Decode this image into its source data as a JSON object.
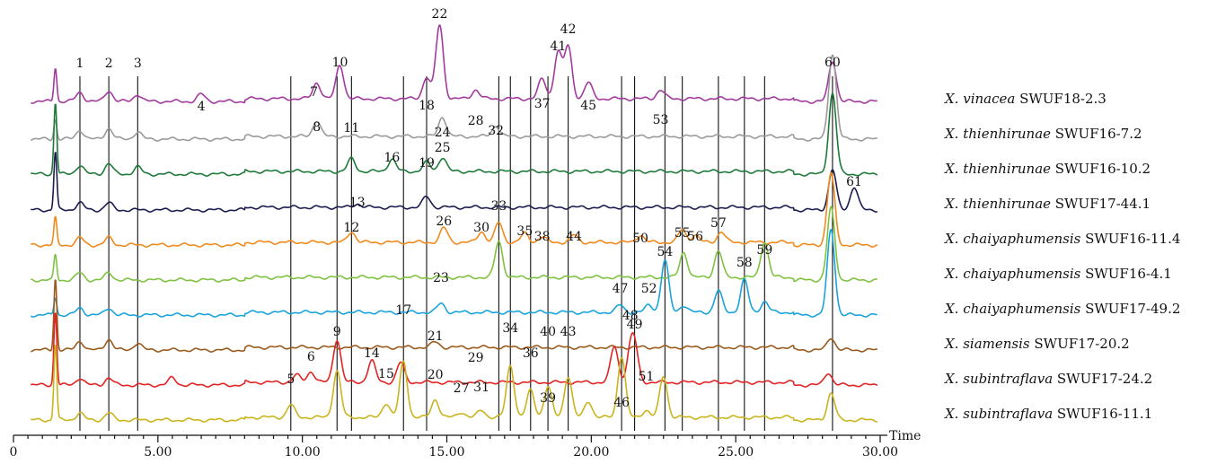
{
  "chart_data": {
    "type": "line",
    "title": "",
    "xlabel": "Time",
    "ylabel": "",
    "xlim": [
      0,
      30
    ],
    "x_ticks": [
      "0",
      "5.00",
      "10.00",
      "15.00",
      "20.00",
      "25.00",
      "30.00"
    ],
    "grid": false,
    "legend_placement": "right",
    "series": [
      {
        "name_species": "X. vinacea",
        "name_strain": "SWUF18-2.3",
        "color": "#a23a9e",
        "peaks": [
          [
            1.45,
            38
          ],
          [
            2.3,
            10
          ],
          [
            3.3,
            12
          ],
          [
            4.3,
            8
          ],
          [
            6.5,
            8
          ],
          [
            10.5,
            18
          ],
          [
            11.3,
            38
          ],
          [
            14.3,
            24
          ],
          [
            14.75,
            82
          ],
          [
            16.0,
            10
          ],
          [
            18.3,
            22
          ],
          [
            18.85,
            52
          ],
          [
            19.2,
            58
          ],
          [
            19.9,
            18
          ],
          [
            22.4,
            10
          ],
          [
            28.35,
            45
          ]
        ]
      },
      {
        "name_species": "X. thienhirunae",
        "name_strain": "SWUF16-7.2",
        "color": "#9a9a9a",
        "peaks": [
          [
            1.45,
            22
          ],
          [
            2.3,
            10
          ],
          [
            3.3,
            12
          ],
          [
            4.3,
            8
          ],
          [
            10.5,
            18
          ],
          [
            14.85,
            22
          ],
          [
            16.7,
            12
          ],
          [
            28.35,
            95
          ]
        ]
      },
      {
        "name_species": "X. thienhirunae",
        "name_strain": "SWUF16-10.2",
        "color": "#1f7a3a",
        "peaks": [
          [
            1.45,
            80
          ],
          [
            2.3,
            10
          ],
          [
            3.3,
            12
          ],
          [
            4.3,
            8
          ],
          [
            11.7,
            14
          ],
          [
            13.1,
            14
          ],
          [
            14.3,
            10
          ],
          [
            14.85,
            16
          ],
          [
            28.35,
            90
          ]
        ]
      },
      {
        "name_species": "X. thienhirunae",
        "name_strain": "SWUF17-44.1",
        "color": "#1c1c50",
        "peaks": [
          [
            1.45,
            65
          ],
          [
            2.3,
            8
          ],
          [
            3.3,
            8
          ],
          [
            11.9,
            4
          ],
          [
            14.3,
            12
          ],
          [
            28.35,
            45
          ],
          [
            29.1,
            26
          ]
        ]
      },
      {
        "name_species": "X. chaiyaphumensis",
        "name_strain": "SWUF16-11.4",
        "color": "#f08a1c",
        "peaks": [
          [
            1.45,
            30
          ],
          [
            2.3,
            8
          ],
          [
            3.3,
            8
          ],
          [
            11.7,
            12
          ],
          [
            14.9,
            16
          ],
          [
            16.2,
            12
          ],
          [
            16.8,
            22
          ],
          [
            17.7,
            10
          ],
          [
            18.3,
            6
          ],
          [
            19.4,
            8
          ],
          [
            21.7,
            8
          ],
          [
            23.15,
            14
          ],
          [
            23.6,
            8
          ],
          [
            24.5,
            12
          ],
          [
            28.3,
            80
          ]
        ]
      },
      {
        "name_species": "X. chaiyaphumensis",
        "name_strain": "SWUF16-4.1",
        "color": "#7fc241",
        "peaks": [
          [
            1.45,
            28
          ],
          [
            2.3,
            8
          ],
          [
            3.3,
            8
          ],
          [
            16.8,
            40
          ],
          [
            23.2,
            28
          ],
          [
            24.4,
            30
          ],
          [
            26.0,
            40
          ],
          [
            28.3,
            80
          ]
        ]
      },
      {
        "name_species": "X. chaiyaphumensis",
        "name_strain": "SWUF17-49.2",
        "color": "#1aa3dc",
        "peaks": [
          [
            1.45,
            20
          ],
          [
            2.3,
            8
          ],
          [
            3.3,
            8
          ],
          [
            14.8,
            10
          ],
          [
            21.0,
            8
          ],
          [
            22.0,
            8
          ],
          [
            22.55,
            58
          ],
          [
            23.2,
            8
          ],
          [
            24.4,
            24
          ],
          [
            25.3,
            36
          ],
          [
            26.0,
            12
          ],
          [
            28.3,
            95
          ]
        ]
      },
      {
        "name_species": "X. siamensis",
        "name_strain": "SWUF17-20.2",
        "color": "#9a5a1c",
        "peaks": [
          [
            1.45,
            80
          ],
          [
            2.3,
            10
          ],
          [
            3.3,
            12
          ],
          [
            4.3,
            8
          ],
          [
            14.6,
            6
          ],
          [
            28.3,
            14
          ]
        ]
      },
      {
        "name_species": "X. subintraflava",
        "name_strain": "SWUF17-24.2",
        "color": "#e02424",
        "peaks": [
          [
            1.45,
            82
          ],
          [
            2.3,
            8
          ],
          [
            3.3,
            8
          ],
          [
            5.5,
            8
          ],
          [
            9.8,
            8
          ],
          [
            10.3,
            12
          ],
          [
            11.2,
            48
          ],
          [
            12.4,
            24
          ],
          [
            13.4,
            22
          ],
          [
            20.8,
            40
          ],
          [
            21.35,
            28
          ],
          [
            21.5,
            36
          ],
          [
            28.2,
            14
          ]
        ]
      },
      {
        "name_species": "X. subintraflava",
        "name_strain": "SWUF16-11.1",
        "color": "#c9b41e",
        "peaks": [
          [
            1.45,
            85
          ],
          [
            2.3,
            8
          ],
          [
            3.3,
            8
          ],
          [
            9.6,
            14
          ],
          [
            11.2,
            52
          ],
          [
            12.9,
            16
          ],
          [
            13.5,
            62
          ],
          [
            14.6,
            20
          ],
          [
            15.5,
            6
          ],
          [
            16.2,
            8
          ],
          [
            17.2,
            58
          ],
          [
            17.9,
            30
          ],
          [
            18.5,
            34
          ],
          [
            19.2,
            46
          ],
          [
            19.9,
            18
          ],
          [
            21.05,
            68
          ],
          [
            21.9,
            8
          ],
          [
            22.5,
            46
          ],
          [
            28.3,
            30
          ]
        ]
      }
    ],
    "annotations": [
      {
        "label": "1",
        "x": 2.3
      },
      {
        "label": "2",
        "x": 3.3
      },
      {
        "label": "3",
        "x": 4.3
      },
      {
        "label": "4",
        "x": 6.5
      },
      {
        "label": "5",
        "x": 9.6
      },
      {
        "label": "6",
        "x": 10.3
      },
      {
        "label": "7",
        "x": 10.4
      },
      {
        "label": "8",
        "x": 10.5
      },
      {
        "label": "9",
        "x": 11.2
      },
      {
        "label": "10",
        "x": 11.3
      },
      {
        "label": "11",
        "x": 11.7
      },
      {
        "label": "12",
        "x": 11.7
      },
      {
        "label": "13",
        "x": 11.9
      },
      {
        "label": "14",
        "x": 12.4
      },
      {
        "label": "15",
        "x": 12.9
      },
      {
        "label": "16",
        "x": 13.1
      },
      {
        "label": "17",
        "x": 13.5
      },
      {
        "label": "18",
        "x": 14.3
      },
      {
        "label": "19",
        "x": 14.3
      },
      {
        "label": "20",
        "x": 14.6
      },
      {
        "label": "21",
        "x": 14.6
      },
      {
        "label": "22",
        "x": 14.75
      },
      {
        "label": "23",
        "x": 14.8
      },
      {
        "label": "24",
        "x": 14.85
      },
      {
        "label": "25",
        "x": 14.85
      },
      {
        "label": "26",
        "x": 14.9
      },
      {
        "label": "27",
        "x": 15.5
      },
      {
        "label": "28",
        "x": 16.0
      },
      {
        "label": "29",
        "x": 16.0
      },
      {
        "label": "30",
        "x": 16.2
      },
      {
        "label": "31",
        "x": 16.2
      },
      {
        "label": "32",
        "x": 16.7
      },
      {
        "label": "33",
        "x": 16.8
      },
      {
        "label": "34",
        "x": 17.2
      },
      {
        "label": "35",
        "x": 17.7
      },
      {
        "label": "36",
        "x": 17.9
      },
      {
        "label": "37",
        "x": 18.3
      },
      {
        "label": "38",
        "x": 18.3
      },
      {
        "label": "39",
        "x": 18.5
      },
      {
        "label": "40",
        "x": 18.5
      },
      {
        "label": "41",
        "x": 18.85
      },
      {
        "label": "42",
        "x": 19.2
      },
      {
        "label": "43",
        "x": 19.2
      },
      {
        "label": "44",
        "x": 19.4
      },
      {
        "label": "45",
        "x": 19.9
      },
      {
        "label": "46",
        "x": 21.05
      },
      {
        "label": "47",
        "x": 21.0
      },
      {
        "label": "48",
        "x": 21.35
      },
      {
        "label": "49",
        "x": 21.5
      },
      {
        "label": "50",
        "x": 21.7
      },
      {
        "label": "51",
        "x": 21.9
      },
      {
        "label": "52",
        "x": 22.0
      },
      {
        "label": "53",
        "x": 22.4
      },
      {
        "label": "54",
        "x": 22.55
      },
      {
        "label": "55",
        "x": 23.15
      },
      {
        "label": "56",
        "x": 23.6
      },
      {
        "label": "57",
        "x": 24.4
      },
      {
        "label": "58",
        "x": 25.3
      },
      {
        "label": "59",
        "x": 26.0
      },
      {
        "label": "60",
        "x": 28.35
      },
      {
        "label": "61",
        "x": 29.1
      }
    ],
    "marker_lines": [
      2.3,
      3.3,
      4.3,
      9.6,
      11.2,
      11.7,
      13.5,
      14.3,
      16.8,
      17.2,
      17.9,
      18.5,
      19.2,
      21.05,
      21.5,
      22.55,
      23.15,
      24.4,
      25.3,
      26.0,
      28.35
    ]
  }
}
